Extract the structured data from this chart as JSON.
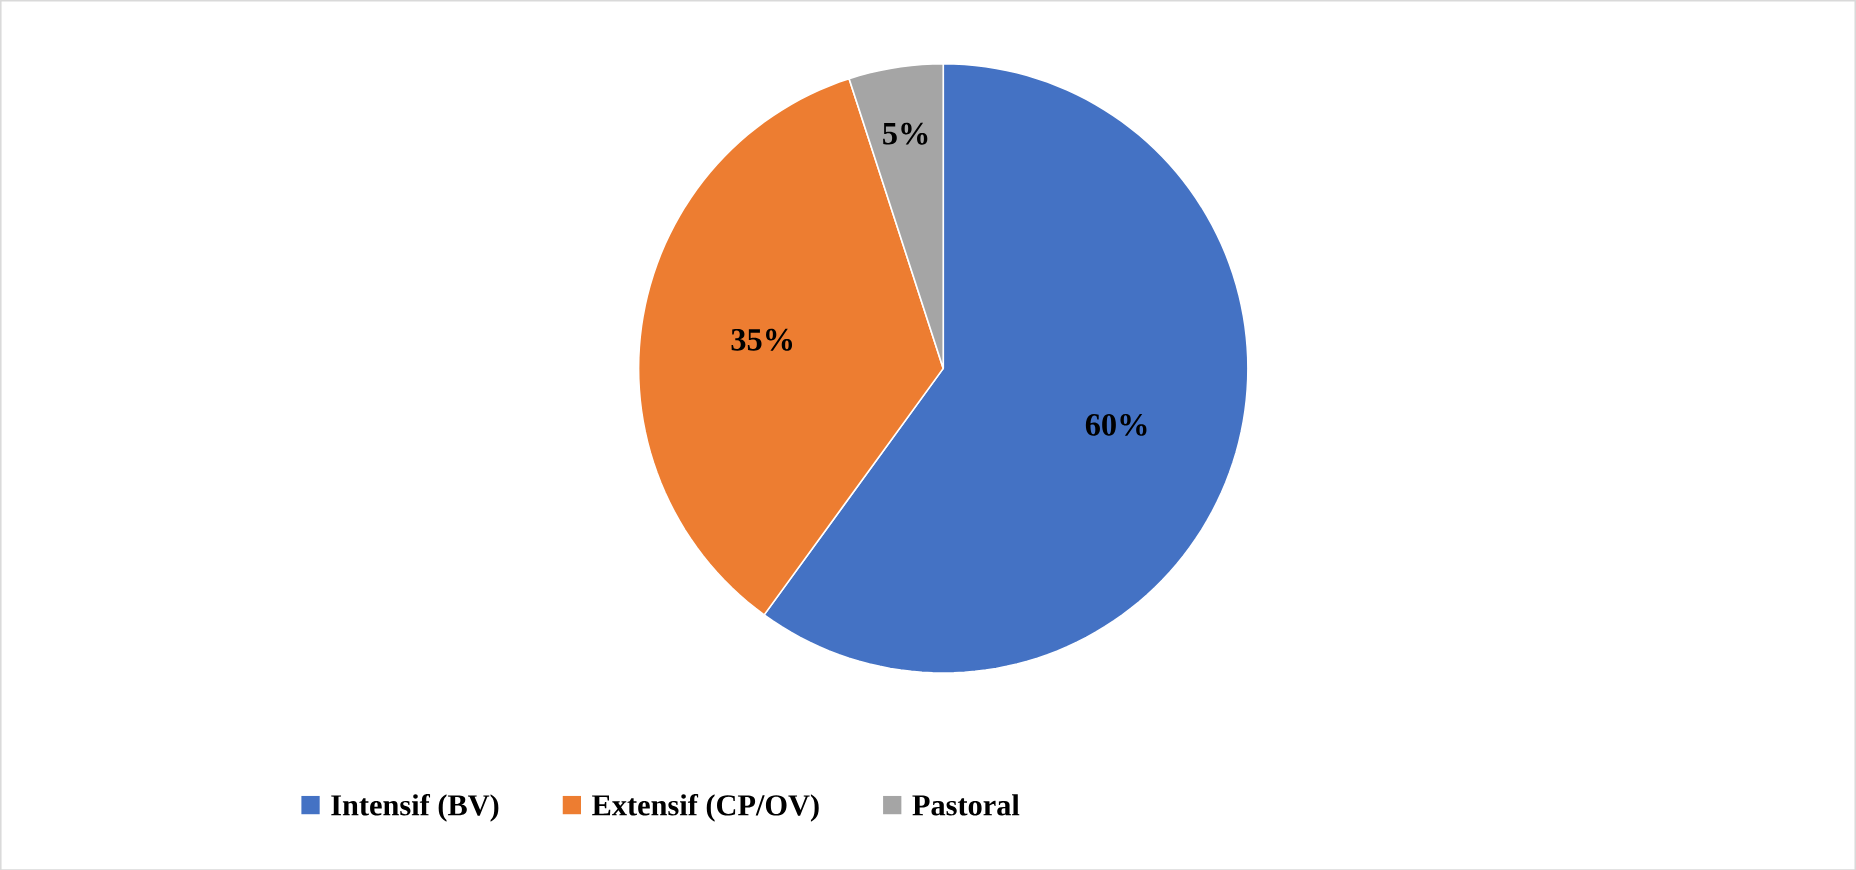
{
  "chart_data": {
    "type": "pie",
    "categories": [
      "Intensif (BV)",
      "Extensif (CP/OV)",
      "Pastoral"
    ],
    "values": [
      60,
      35,
      5
    ],
    "value_labels": [
      "60%",
      "35%",
      "5%"
    ],
    "colors": [
      "#4472c4",
      "#ed7d31",
      "#a5a5a5"
    ],
    "legend": "bottom"
  }
}
